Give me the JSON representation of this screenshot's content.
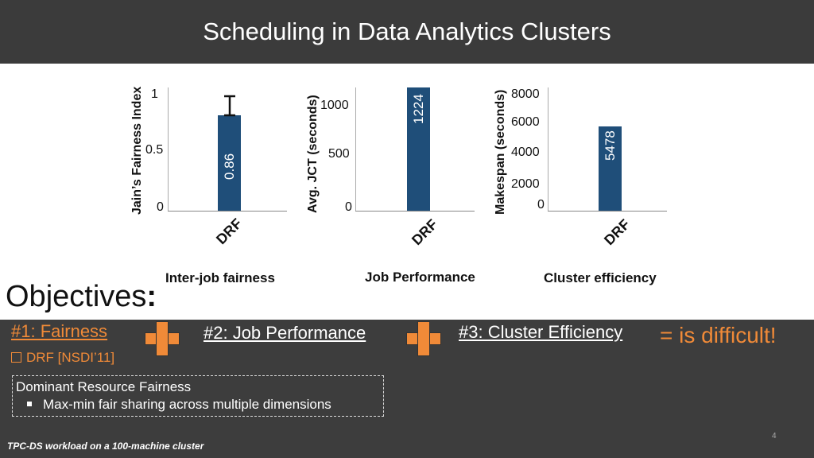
{
  "slide": {
    "title": "Scheduling in Data Analytics Clusters",
    "objectives_label": "Objectives",
    "objective_1": "#1: Fairness",
    "objective_2": "#2: Job Performance",
    "objective_3": "#3: Cluster Efficiency",
    "result": "=  is difficult!",
    "drf_item": "DRF [NSDI’11]",
    "box_title": "Dominant Resource Fairness",
    "box_bullet": "Max-min fair sharing across multiple dimensions",
    "footer": "TPC-DS workload on a 100-machine cluster",
    "page_number": "4",
    "accent_color": "#f08a38",
    "bar_color": "#1f4e79"
  },
  "chart_data": [
    {
      "type": "bar",
      "categories": [
        "DRF"
      ],
      "values": [
        0.86
      ],
      "value_label": "0.86",
      "error": [
        0.75,
        1.0
      ],
      "ylabel": "Jain’s Fairness Index",
      "yticks": [
        "1",
        "0.5",
        "0"
      ],
      "ylim": [
        0,
        1.05
      ],
      "caption": "Inter-job fairness"
    },
    {
      "type": "bar",
      "categories": [
        "DRF"
      ],
      "values": [
        1224
      ],
      "value_label": "1224",
      "ylabel": "Avg. JCT (seconds)",
      "yticks": [
        "1000",
        "500",
        "0"
      ],
      "ylim": [
        0,
        1240
      ],
      "caption": "Job Performance"
    },
    {
      "type": "bar",
      "categories": [
        "DRF"
      ],
      "values": [
        5478
      ],
      "value_label": "5478",
      "ylabel": "Makespan (seconds)",
      "yticks": [
        "8000",
        "6000",
        "4000",
        "2000",
        "0"
      ],
      "ylim": [
        0,
        8000
      ],
      "caption": "Cluster efficiency"
    }
  ]
}
